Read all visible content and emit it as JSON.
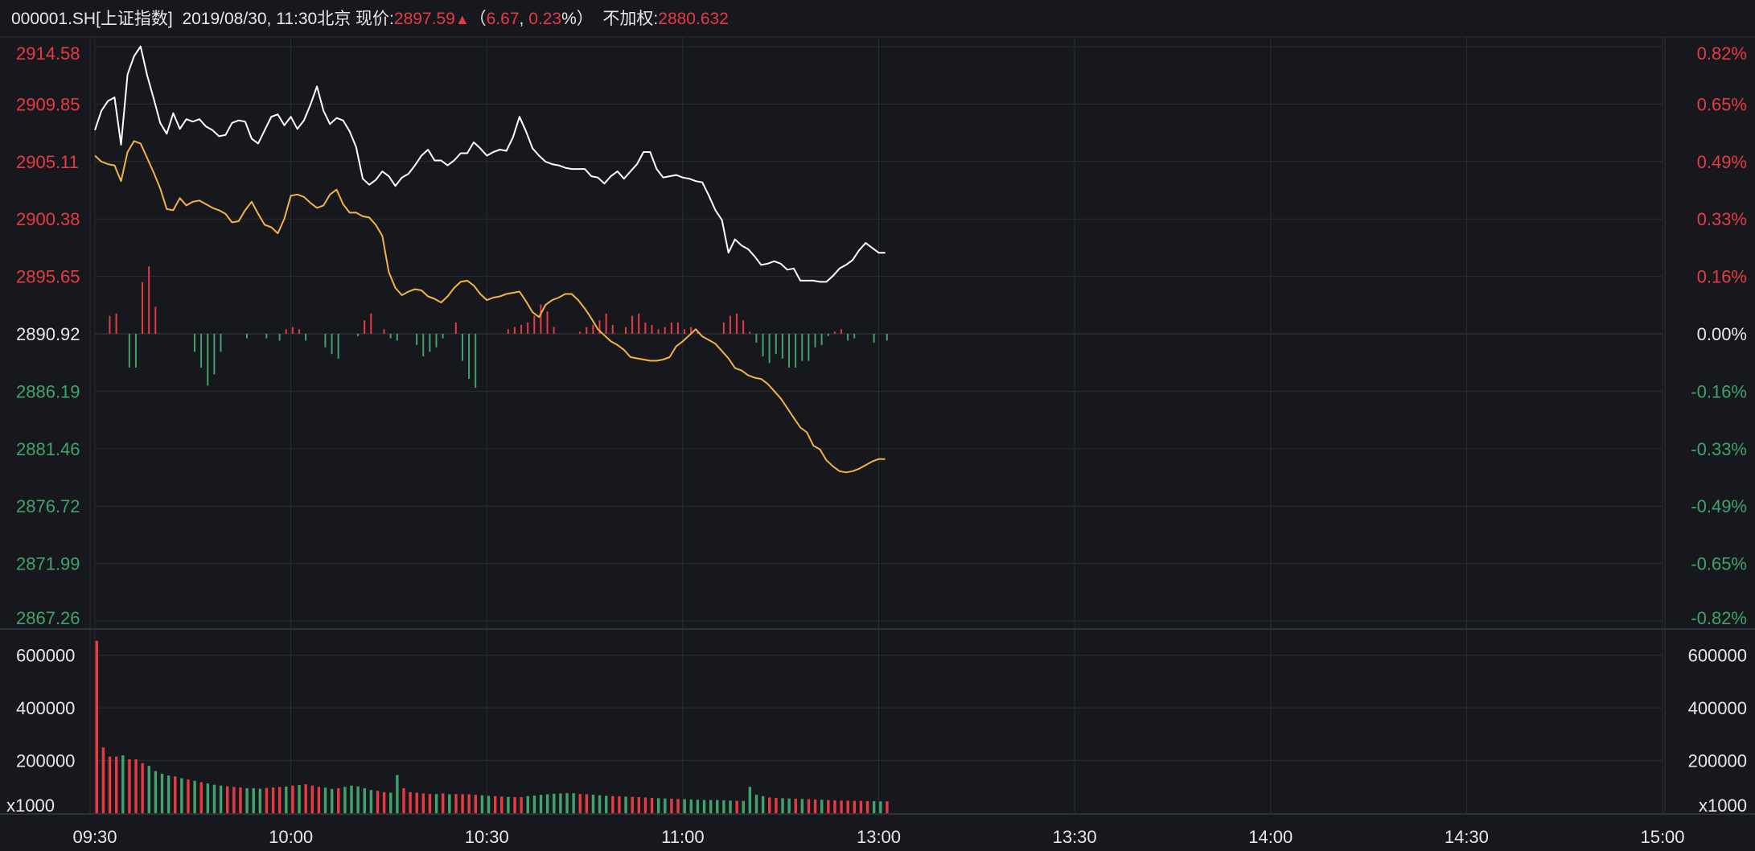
{
  "header": {
    "code": "000001.SH[上证指数]",
    "datetime": "2019/08/30, 11:30北京",
    "price_label": "现价:",
    "price": "2897.59",
    "arrow": "▲",
    "paren_open": "（",
    "change": "6.67",
    "comma": ", ",
    "change_pct": "0.23",
    "pct_suffix": "%）",
    "nonadj_label": "不加权:",
    "nonadj_value": "2880.632"
  },
  "colors": {
    "up": "#e83a43",
    "down": "#3fa36b",
    "price_line": "#ffffff",
    "avg_line": "#f2b346",
    "grid": "#2a2d33",
    "text": "#e8e8e8"
  },
  "chart_data": {
    "type": "line",
    "base_price": 2890.92,
    "price_axis": {
      "ticks": [
        "2914.58",
        "2909.85",
        "2905.11",
        "2900.38",
        "2895.65",
        "2890.92",
        "2886.19",
        "2881.46",
        "2876.72",
        "2871.99",
        "2867.26"
      ],
      "range": [
        2867.26,
        2914.58
      ]
    },
    "pct_axis": {
      "ticks": [
        "0.82%",
        "0.65%",
        "0.49%",
        "0.33%",
        "0.16%",
        "0.00%",
        "-0.16%",
        "-0.33%",
        "-0.49%",
        "-0.65%",
        "-0.82%"
      ]
    },
    "time_axis": {
      "labels": [
        "09:30",
        "10:00",
        "10:30",
        "11:00",
        "13:00",
        "13:30",
        "14:00",
        "14:30",
        "15:00"
      ],
      "total_minutes": 240
    },
    "volume_axis": {
      "ticks": [
        "600000",
        "400000",
        "200000"
      ],
      "unit": "x1000",
      "max": 700000
    },
    "price_series": [
      2907.7,
      2909.3,
      2910.1,
      2910.4,
      2906.5,
      2912.3,
      2913.8,
      2914.6,
      2912.2,
      2910.3,
      2908.3,
      2907.4,
      2909.1,
      2907.8,
      2908.6,
      2908.4,
      2908.6,
      2908.0,
      2907.7,
      2907.2,
      2907.3,
      2908.3,
      2908.5,
      2908.4,
      2907.0,
      2906.6,
      2907.7,
      2908.8,
      2909.0,
      2908.1,
      2908.8,
      2907.8,
      2908.5,
      2909.8,
      2911.3,
      2909.3,
      2908.2,
      2908.7,
      2908.5,
      2907.6,
      2906.3,
      2903.7,
      2903.2,
      2903.6,
      2904.3,
      2903.9,
      2903.1,
      2903.8,
      2904.1,
      2904.8,
      2905.6,
      2906.1,
      2905.2,
      2905.2,
      2904.8,
      2905.2,
      2905.8,
      2905.8,
      2906.7,
      2906.2,
      2905.6,
      2905.9,
      2906.1,
      2906.0,
      2907.1,
      2908.8,
      2907.6,
      2906.2,
      2905.6,
      2905.1,
      2904.9,
      2904.8,
      2904.6,
      2904.5,
      2904.5,
      2904.5,
      2903.9,
      2903.8,
      2903.3,
      2903.9,
      2904.3,
      2903.7,
      2904.3,
      2904.9,
      2905.9,
      2905.9,
      2904.5,
      2903.8,
      2903.9,
      2904.0,
      2903.8,
      2903.7,
      2903.5,
      2903.4,
      2902.3,
      2901.1,
      2900.3,
      2897.6,
      2898.7,
      2898.2,
      2897.9,
      2897.3,
      2896.6,
      2896.7,
      2896.9,
      2896.7,
      2896.2,
      2896.3,
      2895.3,
      2895.3,
      2895.3,
      2895.2,
      2895.2,
      2895.7,
      2896.3,
      2896.6,
      2897.0,
      2897.8,
      2898.4,
      2898.0,
      2897.6,
      2897.6
    ],
    "avg_series": [
      2905.6,
      2905.1,
      2904.9,
      2904.8,
      2903.5,
      2905.9,
      2906.8,
      2906.6,
      2905.4,
      2904.2,
      2902.9,
      2901.2,
      2901.1,
      2902.1,
      2901.5,
      2901.8,
      2901.9,
      2901.6,
      2901.3,
      2901.1,
      2900.8,
      2900.1,
      2900.2,
      2901.1,
      2901.8,
      2900.8,
      2899.9,
      2899.7,
      2899.2,
      2900.4,
      2902.3,
      2902.4,
      2902.2,
      2901.7,
      2901.3,
      2901.5,
      2902.4,
      2902.8,
      2901.6,
      2900.9,
      2900.9,
      2900.6,
      2900.5,
      2899.9,
      2899.0,
      2896.0,
      2894.7,
      2894.1,
      2894.4,
      2894.6,
      2894.5,
      2894.0,
      2893.8,
      2893.5,
      2894.0,
      2894.7,
      2895.2,
      2895.3,
      2894.9,
      2894.2,
      2893.7,
      2893.9,
      2894.0,
      2894.2,
      2894.3,
      2894.4,
      2893.6,
      2892.7,
      2892.3,
      2893.3,
      2893.7,
      2893.9,
      2894.2,
      2894.2,
      2893.7,
      2893.0,
      2892.2,
      2891.3,
      2890.8,
      2890.3,
      2890.0,
      2889.6,
      2889.0,
      2888.9,
      2888.8,
      2888.7,
      2888.7,
      2888.8,
      2889.0,
      2889.9,
      2890.3,
      2890.8,
      2891.3,
      2890.7,
      2890.4,
      2890.1,
      2889.5,
      2888.9,
      2888.1,
      2887.9,
      2887.5,
      2887.3,
      2887.2,
      2886.8,
      2886.2,
      2885.6,
      2884.8,
      2884.0,
      2883.2,
      2882.8,
      2881.7,
      2881.4,
      2880.5,
      2880.0,
      2879.6,
      2879.5,
      2879.6,
      2879.8,
      2880.1,
      2880.4,
      2880.6,
      2880.6
    ],
    "strength_series": [
      0,
      0,
      0.08,
      0.09,
      0,
      -0.15,
      -0.15,
      0.23,
      0.3,
      0.12,
      0,
      0,
      0,
      0,
      0,
      -0.08,
      -0.15,
      -0.23,
      -0.18,
      -0.08,
      0,
      0,
      0,
      -0.02,
      0,
      0,
      -0.02,
      0,
      -0.03,
      0.02,
      0.03,
      0.02,
      -0.03,
      0,
      0,
      -0.06,
      -0.09,
      -0.11,
      0,
      0,
      -0.01,
      0.06,
      0.09,
      0,
      0.02,
      -0.02,
      -0.03,
      0,
      0,
      -0.05,
      -0.1,
      -0.08,
      -0.06,
      -0.02,
      0,
      0.05,
      -0.12,
      -0.2,
      -0.24,
      0,
      0,
      0,
      0,
      0.02,
      0.03,
      0.04,
      0.05,
      0.08,
      0.13,
      0.1,
      0.03,
      0,
      0,
      0,
      0.01,
      0.03,
      0.04,
      0.06,
      0.09,
      0.04,
      0,
      0.03,
      0.08,
      0.09,
      0.05,
      0.04,
      0.02,
      0.03,
      0.05,
      0.05,
      0.02,
      0.03,
      0.01,
      0,
      0,
      0,
      0.05,
      0.08,
      0.09,
      0.06,
      0.01,
      -0.04,
      -0.1,
      -0.13,
      -0.09,
      -0.11,
      -0.15,
      -0.15,
      -0.12,
      -0.12,
      -0.06,
      -0.05,
      -0.01,
      0.01,
      0.02,
      -0.03,
      -0.02,
      0,
      0,
      -0.04,
      0,
      -0.03
    ],
    "volume_series": [
      655000,
      250000,
      215000,
      215000,
      220000,
      205000,
      205000,
      190000,
      180000,
      160000,
      150000,
      143000,
      140000,
      133000,
      128000,
      123000,
      118000,
      113000,
      108000,
      105000,
      102000,
      100000,
      98000,
      95000,
      95000,
      93000,
      96000,
      98000,
      100000,
      101000,
      105000,
      107000,
      110000,
      105000,
      100000,
      97000,
      92000,
      95000,
      100000,
      105000,
      102000,
      95000,
      88000,
      85000,
      80000,
      78000,
      145000,
      95000,
      80000,
      78000,
      75000,
      73000,
      73000,
      75000,
      72000,
      73000,
      72000,
      72000,
      70000,
      68000,
      66000,
      65000,
      63000,
      62000,
      61000,
      61000,
      65000,
      67000,
      70000,
      72000,
      74000,
      75000,
      76000,
      76000,
      73000,
      72000,
      70000,
      68000,
      66000,
      65000,
      64000,
      63000,
      62000,
      61000,
      60000,
      58000,
      57000,
      56000,
      55000,
      54000,
      53000,
      52000,
      51000,
      50000,
      50000,
      50000,
      49000,
      48000,
      47000,
      47000,
      100000,
      70000,
      65000,
      60000,
      58000,
      57000,
      56000,
      55000,
      54000,
      53000,
      52000,
      51000,
      50000,
      49000,
      48000,
      48000,
      47000,
      47000,
      46000,
      46000,
      45000,
      45000
    ]
  }
}
